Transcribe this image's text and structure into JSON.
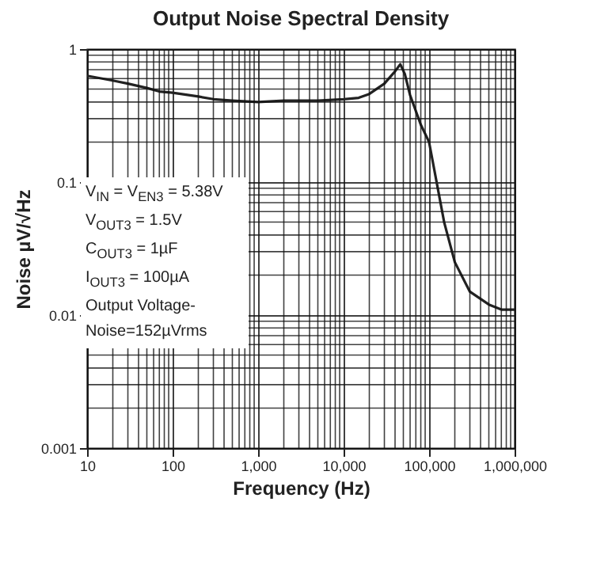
{
  "chart_data": {
    "type": "line",
    "title": "Output Noise Spectral Density",
    "xlabel": "Frequency (Hz)",
    "ylabel": "Noise µV/√Hz",
    "x": [
      10,
      15,
      20,
      30,
      50,
      70,
      100,
      200,
      300,
      500,
      1000,
      2000,
      5000,
      10000,
      15000,
      20000,
      30000,
      40000,
      46000,
      52000,
      60000,
      80000,
      100000,
      150000,
      200000,
      300000,
      500000,
      700000,
      1000000
    ],
    "series": [
      {
        "color": "#222222",
        "values": [
          0.63,
          0.6,
          0.58,
          0.55,
          0.51,
          0.48,
          0.47,
          0.44,
          0.42,
          0.41,
          0.4,
          0.41,
          0.41,
          0.42,
          0.43,
          0.46,
          0.55,
          0.68,
          0.77,
          0.65,
          0.45,
          0.27,
          0.2,
          0.05,
          0.025,
          0.015,
          0.012,
          0.011,
          0.011
        ]
      }
    ],
    "log": "xy",
    "grid": true,
    "xlim": [
      10,
      1000000
    ],
    "ylim": [
      0.001,
      1
    ],
    "xticks": [
      10,
      100,
      {
        "value": 1000,
        "label": "1,000"
      },
      {
        "value": 10000,
        "label": "10,000"
      },
      {
        "value": 100000,
        "label": "100,000"
      },
      {
        "value": 1000000,
        "label": "1,000,000"
      }
    ],
    "yticks": [
      0.001,
      0.01,
      0.1,
      1
    ],
    "annotations": [
      "V$_{IN}$ = V$_{EN3}$ = 5.38V",
      "V$_{OUT3}$ = 1.5V",
      "C$_{OUT3}$ = 1µF",
      "I$_{OUT3}$ = 100µA",
      "Output Voltage-Noise=152µVrms"
    ]
  }
}
